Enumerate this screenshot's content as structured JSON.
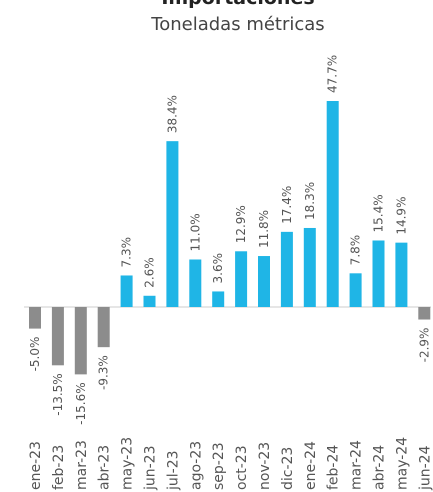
{
  "chart_data": {
    "type": "bar",
    "title": "Importaciones",
    "subtitle": "Toneladas métricas",
    "categories": [
      "ene-23",
      "feb-23",
      "mar-23",
      "abr-23",
      "may-23",
      "jun-23",
      "jul-23",
      "ago-23",
      "sep-23",
      "oct-23",
      "nov-23",
      "dic-23",
      "ene-24",
      "feb-24",
      "mar-24",
      "abr-24",
      "may-24",
      "jun-24"
    ],
    "values": [
      -5.0,
      -13.5,
      -15.6,
      -9.3,
      7.3,
      2.6,
      38.4,
      11.0,
      3.6,
      12.9,
      11.8,
      17.4,
      18.3,
      47.7,
      7.8,
      15.4,
      14.9,
      -2.9
    ],
    "value_labels": [
      "-5.0%",
      "-13.5%",
      "-15.6%",
      "-9.3%",
      "7.3%",
      "2.6%",
      "38.4%",
      "11.0%",
      "3.6%",
      "12.9%",
      "11.8%",
      "17.4%",
      "18.3%",
      "47.7%",
      "7.8%",
      "15.4%",
      "14.9%",
      "-2.9%"
    ],
    "color": "#1fb5e6",
    "negative_color": "#8c8c8c"
  }
}
